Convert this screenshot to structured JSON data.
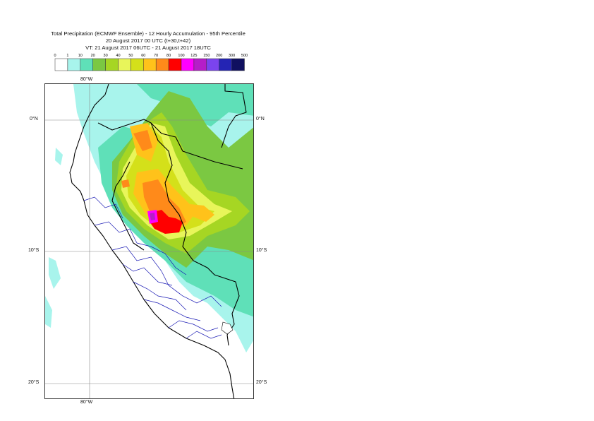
{
  "header": {
    "title_line1": "Total Precipitation (ECMWF Ensemble) - 12 Hourly Accumulation - 95th Percentile",
    "title_line2": "20 August 2017 00 UTC (t+30,t+42)",
    "title_line3": "VT: 21 August 2017 06UTC - 21 August 2017 18UTC"
  },
  "legend": {
    "thresholds": [
      "0",
      "1",
      "10",
      "20",
      "30",
      "40",
      "50",
      "60",
      "70",
      "80",
      "100",
      "125",
      "150",
      "200",
      "300",
      "500"
    ],
    "colors": [
      "#ffffff",
      "#a8f4ec",
      "#5fe0b8",
      "#7bc842",
      "#a6d623",
      "#e8f55a",
      "#d4e01a",
      "#ffc21a",
      "#ff8a1a",
      "#ff0000",
      "#ff00ff",
      "#b51ec8",
      "#7b44ee",
      "#2424b4",
      "#101060"
    ]
  },
  "map": {
    "lat_labels": {
      "n0": "0°N",
      "s10": "10°S",
      "s20": "20°S"
    },
    "lon_labels": {
      "w80": "80°W"
    }
  }
}
